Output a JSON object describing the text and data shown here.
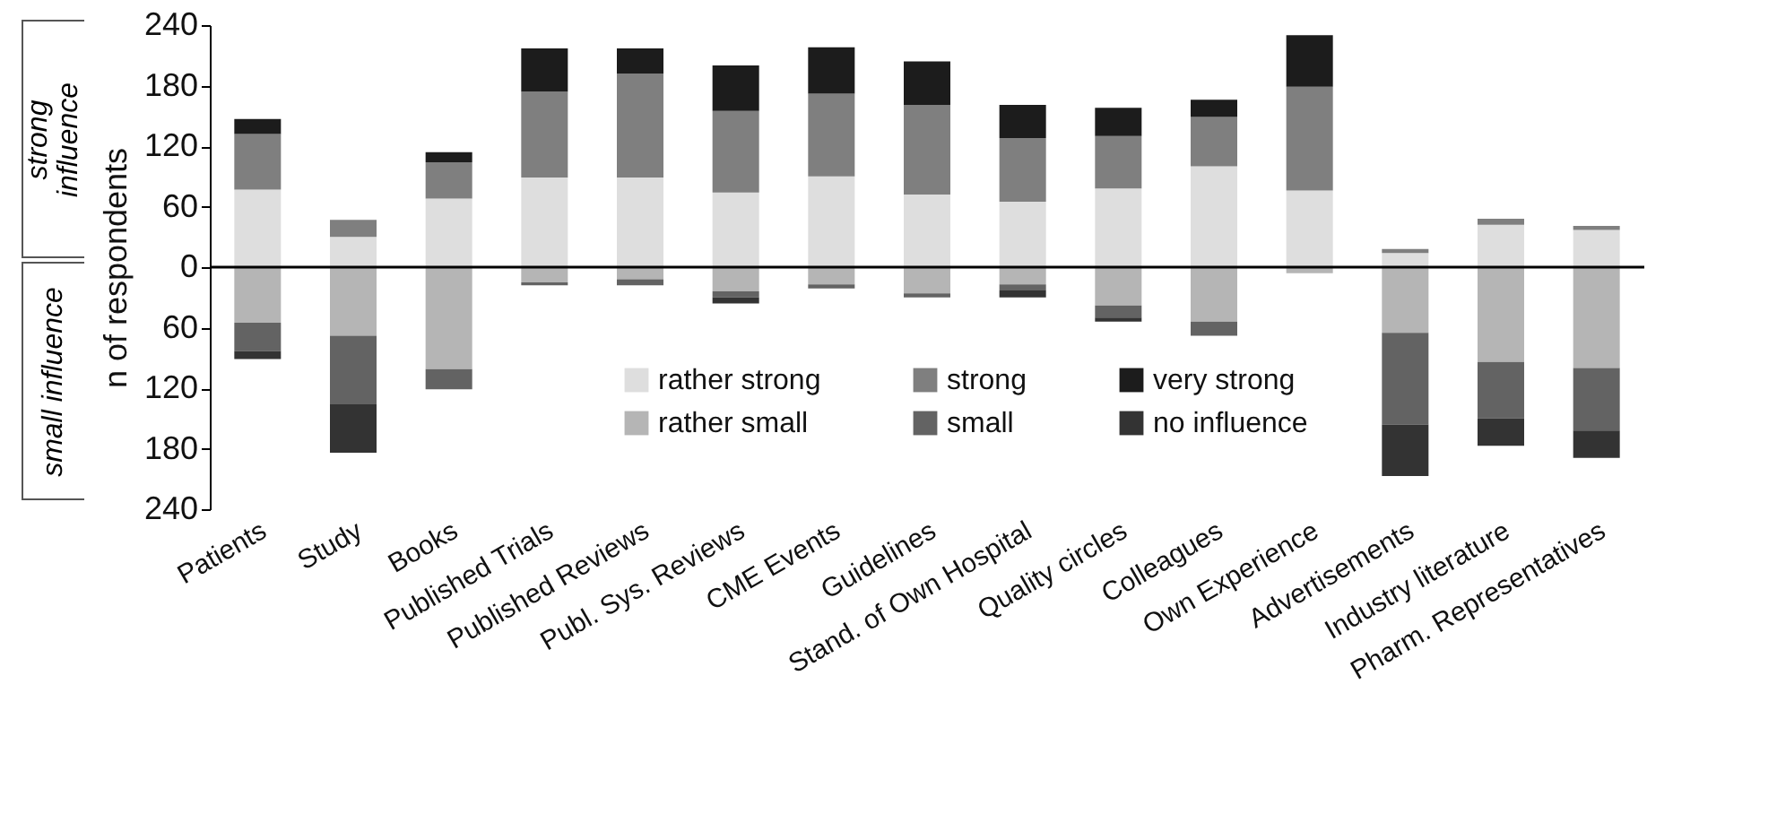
{
  "chart_data": {
    "type": "bar",
    "stacked": true,
    "ylabel": "n of respondents",
    "categories": [
      "Patients",
      "Study",
      "Books",
      "Published Trials",
      "Published Reviews",
      "Publ. Sys. Reviews",
      "CME Events",
      "Guidelines",
      "Stand. of Own Hospital",
      "Quality circles",
      "Colleagues",
      "Own Experience",
      "Advertisements",
      "Industry literature",
      "Pharm. Representatives"
    ],
    "series": [
      {
        "name": "rather strong",
        "color": "#dedede",
        "values": [
          77,
          30,
          68,
          89,
          89,
          74,
          90,
          72,
          65,
          78,
          100,
          76,
          14,
          42,
          37
        ]
      },
      {
        "name": "strong",
        "color": "#7f7f7f",
        "values": [
          55,
          17,
          36,
          85,
          103,
          81,
          82,
          89,
          63,
          52,
          49,
          103,
          4,
          6,
          4
        ]
      },
      {
        "name": "very strong",
        "color": "#1c1c1c",
        "values": [
          15,
          0,
          10,
          43,
          25,
          45,
          46,
          43,
          33,
          28,
          17,
          51,
          0,
          0,
          0
        ]
      },
      {
        "name": "rather small",
        "color": "#b5b5b5",
        "values": [
          -55,
          -68,
          -101,
          -15,
          -12,
          -24,
          -17,
          -26,
          -17,
          -38,
          -54,
          -6,
          -65,
          -94,
          -100
        ]
      },
      {
        "name": "small",
        "color": "#636363",
        "values": [
          -28,
          -68,
          -20,
          -3,
          -6,
          -6,
          -4,
          -4,
          -6,
          -12,
          -14,
          0,
          -91,
          -56,
          -62
        ]
      },
      {
        "name": "no influence",
        "color": "#333333",
        "values": [
          -8,
          -48,
          0,
          0,
          0,
          -6,
          0,
          0,
          -7,
          -4,
          0,
          0,
          -51,
          -27,
          -27
        ]
      }
    ],
    "ylim": [
      -240,
      240
    ],
    "yticks": [
      {
        "value": -240,
        "label": "240"
      },
      {
        "value": -180,
        "label": "180"
      },
      {
        "value": -120,
        "label": "120"
      },
      {
        "value": -60,
        "label": "60"
      },
      0,
      60,
      120,
      180,
      240
    ],
    "ref_lines": [
      {
        "axis": "y",
        "value": 0,
        "color": "#000000"
      }
    ],
    "legend": "bottom",
    "annotations": [
      "strong influence",
      "small influence"
    ]
  }
}
